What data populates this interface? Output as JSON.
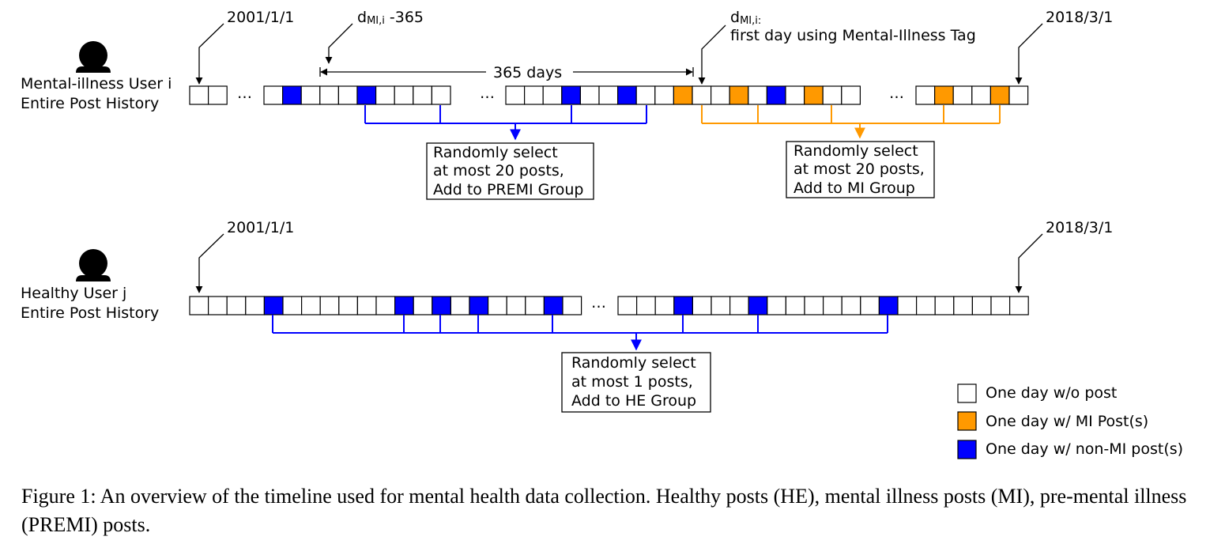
{
  "colors": {
    "empty": "#ffffff",
    "mi": "#ff9900",
    "nonmi": "#0000ff",
    "line": "#000000"
  },
  "icons": [
    "user-icon"
  ],
  "top": {
    "user_label_line1": "Mental-illness User i",
    "user_label_line2": "Entire Post History",
    "start_date": "2001/1/1",
    "end_date": "2018/3/1",
    "d_minus_main": "d",
    "d_minus_sub": "MI,i",
    "d_minus_tail": " -365",
    "d_main": "d",
    "d_sub": "MI,i:",
    "d_desc": "first day using Mental-Illness Tag",
    "span_label": "365 days",
    "ellipsis": "…",
    "premi_box": [
      "Randomly select",
      "at most 20 posts,",
      "Add to PREMI Group"
    ],
    "mi_box": [
      "Randomly select",
      "at most 20 posts,",
      "Add to MI Group"
    ],
    "cells": [
      [
        "e",
        "e"
      ],
      [
        "e",
        "b",
        "e",
        "e",
        "e",
        "b",
        "e",
        "e",
        "e",
        "e"
      ],
      [
        "e",
        "e",
        "e",
        "b",
        "e",
        "e",
        "b",
        "e",
        "e",
        "o",
        "e",
        "e",
        "o",
        "e",
        "b",
        "e",
        "o",
        "e",
        "e"
      ],
      [
        "e",
        "o",
        "e",
        "e",
        "o",
        "e"
      ]
    ]
  },
  "bottom": {
    "user_label_line1": "Healthy User j",
    "user_label_line2": "Entire Post History",
    "start_date": "2001/1/1",
    "end_date": "2018/3/1",
    "ellipsis": "…",
    "he_box": [
      "Randomly select",
      "at most 1 posts,",
      "Add to HE Group"
    ],
    "cells": [
      [
        "e",
        "e",
        "e",
        "e",
        "b",
        "e",
        "e",
        "e",
        "e",
        "e",
        "e",
        "b",
        "e",
        "b",
        "e",
        "b",
        "e",
        "e",
        "e",
        "b",
        "e"
      ],
      [
        "e",
        "e",
        "e",
        "b",
        "e",
        "e",
        "e",
        "b",
        "e",
        "e",
        "e",
        "e",
        "e",
        "e",
        "b",
        "e",
        "e",
        "e",
        "e",
        "e",
        "e",
        "e"
      ]
    ]
  },
  "legend": [
    {
      "label": "One day w/o post",
      "type": "e"
    },
    {
      "label": "One day w/ MI Post(s)",
      "type": "o"
    },
    {
      "label": "One day w/ non-MI post(s)",
      "type": "b"
    }
  ],
  "caption": "Figure 1: An overview of the timeline used for mental health data collection. Healthy posts (HE), mental illness posts (MI), pre-mental illness (PREMI) posts."
}
